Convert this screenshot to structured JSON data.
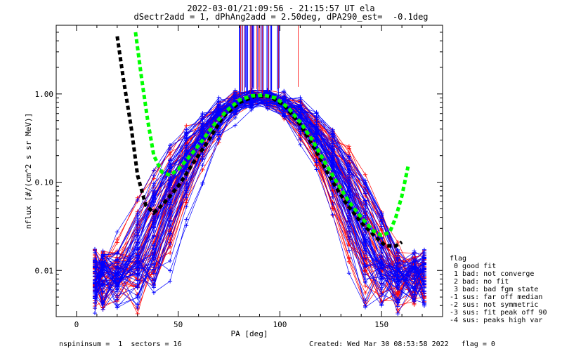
{
  "header": {
    "line1": "2022-03-01/21:09:56 - 21:15:57 UT ela",
    "line2": "dSectr2add = 1, dPhAng2add = 2.50deg, dPA290_est=  -0.1deg"
  },
  "footer": {
    "left": "nspininsum =  1  sectors = 16",
    "right": "Created: Wed Mar 30 08:53:58 2022   flag = 0"
  },
  "legend": {
    "title": "flag",
    "items": [
      " 0 good fit",
      " 1 bad: not converge",
      " 2 bad: no fit",
      " 3 bad: bad fgm state",
      "-1 sus: far off median",
      "-2 sus: not symmetric",
      "-3 sus: fit peak off 90",
      "-4 sus: peaks high var"
    ]
  },
  "colors": {
    "series_a": "#ff0000",
    "series_b": "#0000ff",
    "fit_black": "#000000",
    "fit_green": "#00ff00"
  },
  "chart_data": {
    "type": "line",
    "xlabel": "PA [deg]",
    "ylabel": "nflux [#/(cm^2 s sr MeV)]",
    "xlim": [
      -10,
      180
    ],
    "ylim": [
      0.003,
      6
    ],
    "yscale": "log",
    "xticks": [
      0,
      50,
      100,
      150
    ],
    "yticks": [
      {
        "value": 0.01,
        "label": "0.01"
      },
      {
        "value": 0.1,
        "label": "0.10"
      },
      {
        "value": 1,
        "label": "1.00"
      }
    ],
    "grid": false,
    "legend_position": "right",
    "series": [
      {
        "color": "#000000",
        "style": "dashed-thick",
        "x": [
          20,
          23,
          27,
          30,
          34,
          38,
          43,
          50,
          57,
          65,
          72,
          80,
          88,
          95,
          102,
          110,
          118,
          125,
          132,
          140,
          147,
          152,
          157,
          160
        ],
        "y": [
          4.5,
          1.5,
          0.4,
          0.12,
          0.055,
          0.045,
          0.058,
          0.09,
          0.16,
          0.3,
          0.55,
          0.8,
          0.95,
          0.93,
          0.75,
          0.45,
          0.22,
          0.11,
          0.06,
          0.035,
          0.024,
          0.019,
          0.019,
          0.021
        ]
      },
      {
        "color": "#00ff00",
        "style": "dashed-thick",
        "x": [
          29,
          32,
          35,
          38,
          42,
          46,
          50,
          56,
          62,
          68,
          74,
          80,
          86,
          92,
          98,
          104,
          110,
          116,
          122,
          128,
          134,
          140,
          146,
          150,
          154,
          157,
          160,
          163
        ],
        "y": [
          5.0,
          1.5,
          0.5,
          0.2,
          0.13,
          0.12,
          0.14,
          0.2,
          0.3,
          0.46,
          0.65,
          0.85,
          0.95,
          0.97,
          0.9,
          0.7,
          0.48,
          0.3,
          0.17,
          0.1,
          0.06,
          0.04,
          0.028,
          0.025,
          0.027,
          0.04,
          0.07,
          0.15
        ]
      }
    ]
  }
}
